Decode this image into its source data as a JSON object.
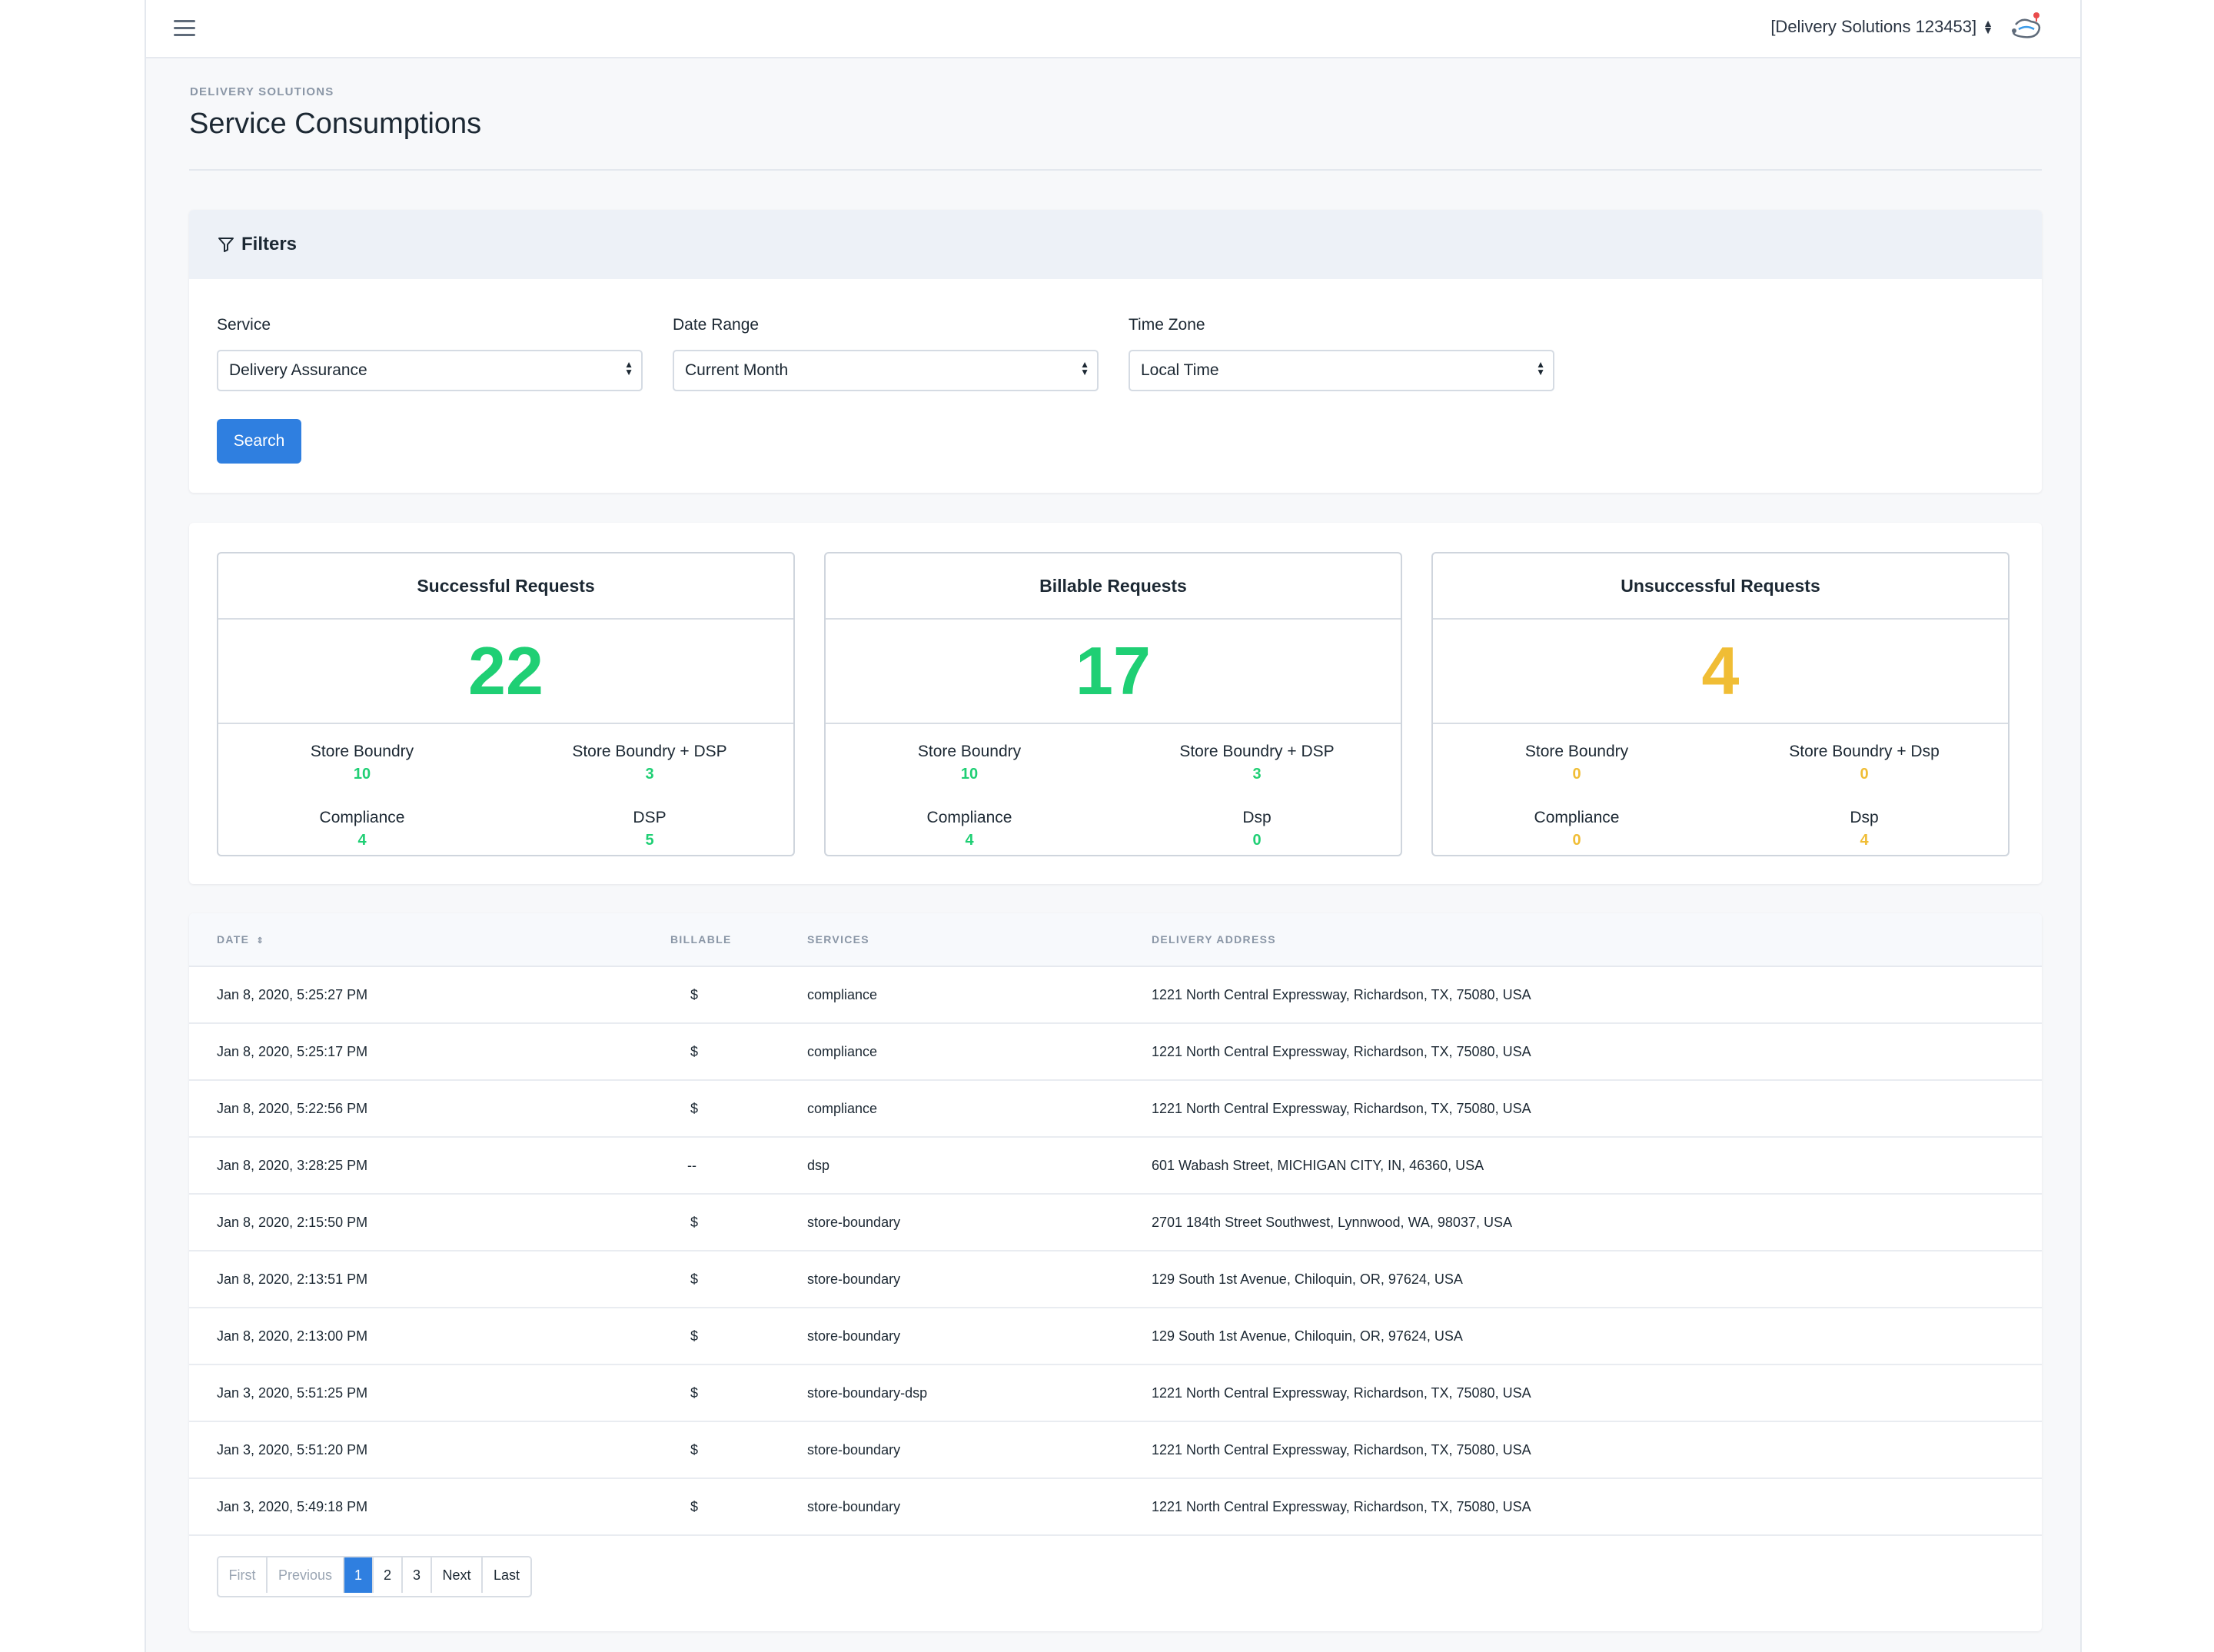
{
  "header": {
    "account_label": "[Delivery Solutions 123453]",
    "icons": {
      "menu": "hamburger-menu-icon",
      "logo": "delivery-route-logo"
    }
  },
  "page": {
    "breadcrumb": "DELIVERY SOLUTIONS",
    "title": "Service Consumptions"
  },
  "filters": {
    "heading": "Filters",
    "service_label": "Service",
    "service_value": "Delivery Assurance",
    "date_range_label": "Date Range",
    "date_range_value": "Current Month",
    "time_zone_label": "Time Zone",
    "time_zone_value": "Local Time",
    "search_label": "Search"
  },
  "colors": {
    "accent": "#2f7fe0",
    "success": "#1fcf74",
    "warning": "#f0bd35"
  },
  "stats": {
    "successful": {
      "title": "Successful Requests",
      "total": "22",
      "items": [
        {
          "label": "Store Boundry",
          "value": "10"
        },
        {
          "label": "Store Boundry + DSP",
          "value": "3"
        },
        {
          "label": "Compliance",
          "value": "4"
        },
        {
          "label": "DSP",
          "value": "5"
        }
      ]
    },
    "billable": {
      "title": "Billable Requests",
      "total": "17",
      "items": [
        {
          "label": "Store Boundry",
          "value": "10"
        },
        {
          "label": "Store Boundry + DSP",
          "value": "3"
        },
        {
          "label": "Compliance",
          "value": "4"
        },
        {
          "label": "Dsp",
          "value": "0"
        }
      ]
    },
    "unsuccessful": {
      "title": "Unsuccessful Requests",
      "total": "4",
      "items": [
        {
          "label": "Store Boundry",
          "value": "0"
        },
        {
          "label": "Store Boundry + Dsp",
          "value": "0"
        },
        {
          "label": "Compliance",
          "value": "0"
        },
        {
          "label": "Dsp",
          "value": "4"
        }
      ]
    }
  },
  "table": {
    "headers": {
      "date": "DATE",
      "billable": "BILLABLE",
      "services": "SERVICES",
      "address": "DELIVERY ADDRESS"
    },
    "rows": [
      {
        "date": "Jan 8, 2020, 5:25:27 PM",
        "billable": "$",
        "service": "compliance",
        "address": "1221 North Central Expressway, Richardson, TX, 75080, USA"
      },
      {
        "date": "Jan 8, 2020, 5:25:17 PM",
        "billable": "$",
        "service": "compliance",
        "address": "1221 North Central Expressway, Richardson, TX, 75080, USA"
      },
      {
        "date": "Jan 8, 2020, 5:22:56 PM",
        "billable": "$",
        "service": "compliance",
        "address": "1221 North Central Expressway, Richardson, TX, 75080, USA"
      },
      {
        "date": "Jan 8, 2020, 3:28:25 PM",
        "billable": "--",
        "service": "dsp",
        "address": "601 Wabash Street, MICHIGAN CITY, IN, 46360, USA"
      },
      {
        "date": "Jan 8, 2020, 2:15:50 PM",
        "billable": "$",
        "service": "store-boundary",
        "address": "2701 184th Street Southwest, Lynnwood, WA, 98037, USA"
      },
      {
        "date": "Jan 8, 2020, 2:13:51 PM",
        "billable": "$",
        "service": "store-boundary",
        "address": "129 South 1st Avenue, Chiloquin, OR, 97624, USA"
      },
      {
        "date": "Jan 8, 2020, 2:13:00 PM",
        "billable": "$",
        "service": "store-boundary",
        "address": "129 South 1st Avenue, Chiloquin, OR, 97624, USA"
      },
      {
        "date": "Jan 3, 2020, 5:51:25 PM",
        "billable": "$",
        "service": "store-boundary-dsp",
        "address": "1221 North Central Expressway, Richardson, TX, 75080, USA"
      },
      {
        "date": "Jan 3, 2020, 5:51:20 PM",
        "billable": "$",
        "service": "store-boundary",
        "address": "1221 North Central Expressway, Richardson, TX, 75080, USA"
      },
      {
        "date": "Jan 3, 2020, 5:49:18 PM",
        "billable": "$",
        "service": "store-boundary",
        "address": "1221 North Central Expressway, Richardson, TX, 75080, USA"
      }
    ]
  },
  "pagination": {
    "first": "First",
    "previous": "Previous",
    "pages": [
      "1",
      "2",
      "3"
    ],
    "current": "1",
    "next": "Next",
    "last": "Last"
  }
}
